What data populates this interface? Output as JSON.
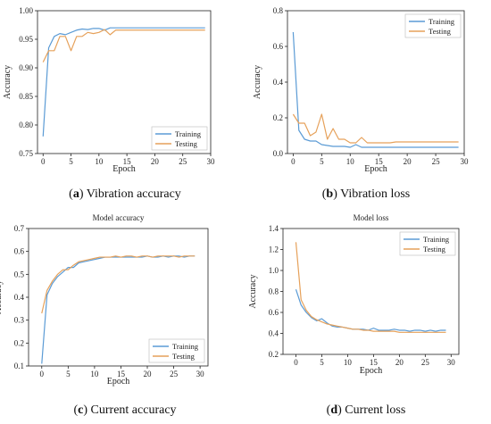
{
  "colors": {
    "training": "#5b9bd5",
    "testing": "#e6a15a",
    "axis": "#222222"
  },
  "captions": [
    {
      "tag": "a",
      "text": "Vibration accuracy"
    },
    {
      "tag": "b",
      "text": "Vibration loss"
    },
    {
      "tag": "c",
      "text": "Current accuracy"
    },
    {
      "tag": "d",
      "text": "Current loss"
    }
  ],
  "chart_data": [
    {
      "type": "line",
      "title": "",
      "xlabel": "Epoch",
      "ylabel": "Accuracy",
      "xlim": [
        -1,
        30
      ],
      "ylim": [
        0.75,
        1.0
      ],
      "xticks": [
        0,
        5,
        10,
        15,
        20,
        25,
        30
      ],
      "yticks": [
        0.75,
        0.8,
        0.85,
        0.9,
        0.95,
        1.0
      ],
      "ytick_labels": [
        "0.75",
        "0.80",
        "0.85",
        "0.90",
        "0.95",
        "1.00"
      ],
      "legend": "bottom-right",
      "series": [
        {
          "name": "Training",
          "x": [
            0,
            1,
            2,
            3,
            4,
            5,
            6,
            7,
            8,
            9,
            10,
            11,
            12,
            13,
            14,
            15,
            16,
            17,
            18,
            19,
            20,
            21,
            22,
            23,
            24,
            25,
            26,
            27,
            28,
            29
          ],
          "y": [
            0.78,
            0.935,
            0.955,
            0.96,
            0.958,
            0.962,
            0.966,
            0.968,
            0.967,
            0.969,
            0.969,
            0.966,
            0.97,
            0.97,
            0.97,
            0.97,
            0.97,
            0.97,
            0.97,
            0.97,
            0.97,
            0.97,
            0.97,
            0.97,
            0.97,
            0.97,
            0.97,
            0.97,
            0.97,
            0.97
          ]
        },
        {
          "name": "Testing",
          "x": [
            0,
            1,
            2,
            3,
            4,
            5,
            6,
            7,
            8,
            9,
            10,
            11,
            12,
            13,
            14,
            15,
            16,
            17,
            18,
            19,
            20,
            21,
            22,
            23,
            24,
            25,
            26,
            27,
            28,
            29
          ],
          "y": [
            0.91,
            0.93,
            0.93,
            0.955,
            0.955,
            0.93,
            0.955,
            0.955,
            0.962,
            0.96,
            0.962,
            0.967,
            0.958,
            0.966,
            0.966,
            0.966,
            0.966,
            0.966,
            0.966,
            0.966,
            0.966,
            0.966,
            0.966,
            0.966,
            0.966,
            0.966,
            0.966,
            0.966,
            0.966,
            0.966
          ]
        }
      ]
    },
    {
      "type": "line",
      "title": "",
      "xlabel": "Epoch",
      "ylabel": "Accuracy",
      "xlim": [
        -1,
        30
      ],
      "ylim": [
        0.0,
        0.8
      ],
      "xticks": [
        0,
        5,
        10,
        15,
        20,
        25,
        30
      ],
      "yticks": [
        0.0,
        0.2,
        0.4,
        0.6,
        0.8
      ],
      "ytick_labels": [
        "0.0",
        "0.2",
        "0.4",
        "0.6",
        "0.8"
      ],
      "legend": "top-right",
      "series": [
        {
          "name": "Training",
          "x": [
            0,
            1,
            2,
            3,
            4,
            5,
            6,
            7,
            8,
            9,
            10,
            11,
            12,
            13,
            14,
            15,
            16,
            17,
            18,
            19,
            20,
            21,
            22,
            23,
            24,
            25,
            26,
            27,
            28,
            29
          ],
          "y": [
            0.68,
            0.13,
            0.08,
            0.07,
            0.07,
            0.05,
            0.045,
            0.04,
            0.04,
            0.04,
            0.035,
            0.05,
            0.035,
            0.035,
            0.035,
            0.035,
            0.035,
            0.035,
            0.035,
            0.035,
            0.035,
            0.035,
            0.035,
            0.035,
            0.035,
            0.035,
            0.035,
            0.035,
            0.035,
            0.035
          ]
        },
        {
          "name": "Testing",
          "x": [
            0,
            1,
            2,
            3,
            4,
            5,
            6,
            7,
            8,
            9,
            10,
            11,
            12,
            13,
            14,
            15,
            16,
            17,
            18,
            19,
            20,
            21,
            22,
            23,
            24,
            25,
            26,
            27,
            28,
            29
          ],
          "y": [
            0.22,
            0.17,
            0.17,
            0.1,
            0.12,
            0.22,
            0.08,
            0.14,
            0.08,
            0.08,
            0.06,
            0.06,
            0.09,
            0.06,
            0.06,
            0.06,
            0.06,
            0.06,
            0.065,
            0.065,
            0.065,
            0.065,
            0.065,
            0.065,
            0.065,
            0.065,
            0.065,
            0.065,
            0.065,
            0.065
          ]
        }
      ]
    },
    {
      "type": "line",
      "title": "Model accuracy",
      "xlabel": "Epoch",
      "ylabel": "Accuracy",
      "xlim": [
        -2.5,
        31.5
      ],
      "ylim": [
        0.1,
        0.7
      ],
      "xticks": [
        0,
        5,
        10,
        15,
        20,
        25,
        30
      ],
      "yticks": [
        0.1,
        0.2,
        0.3,
        0.4,
        0.5,
        0.6,
        0.7
      ],
      "ytick_labels": [
        "0.1",
        "0.2",
        "0.3",
        "0.4",
        "0.5",
        "0.6",
        "0.7"
      ],
      "legend": "bottom-right",
      "series": [
        {
          "name": "Training",
          "x": [
            0,
            1,
            2,
            3,
            4,
            5,
            6,
            7,
            8,
            9,
            10,
            11,
            12,
            13,
            14,
            15,
            16,
            17,
            18,
            19,
            20,
            21,
            22,
            23,
            24,
            25,
            26,
            27,
            28,
            29
          ],
          "y": [
            0.11,
            0.41,
            0.46,
            0.49,
            0.51,
            0.53,
            0.53,
            0.55,
            0.555,
            0.56,
            0.565,
            0.57,
            0.575,
            0.575,
            0.575,
            0.575,
            0.575,
            0.575,
            0.575,
            0.575,
            0.58,
            0.575,
            0.575,
            0.58,
            0.575,
            0.58,
            0.58,
            0.575,
            0.58,
            0.58
          ]
        },
        {
          "name": "Testing",
          "x": [
            0,
            1,
            2,
            3,
            4,
            5,
            6,
            7,
            8,
            9,
            10,
            11,
            12,
            13,
            14,
            15,
            16,
            17,
            18,
            19,
            20,
            21,
            22,
            23,
            24,
            25,
            26,
            27,
            28,
            29
          ],
          "y": [
            0.33,
            0.43,
            0.47,
            0.5,
            0.52,
            0.52,
            0.54,
            0.555,
            0.56,
            0.565,
            0.57,
            0.575,
            0.575,
            0.575,
            0.58,
            0.575,
            0.58,
            0.58,
            0.575,
            0.58,
            0.58,
            0.575,
            0.58,
            0.58,
            0.58,
            0.58,
            0.575,
            0.58,
            0.58,
            0.58
          ]
        }
      ]
    },
    {
      "type": "line",
      "title": "Model loss",
      "xlabel": "Epoch",
      "ylabel": "Accuracy",
      "xlim": [
        -2.5,
        31.5
      ],
      "ylim": [
        0.2,
        1.4
      ],
      "xticks": [
        0,
        5,
        10,
        15,
        20,
        25,
        30
      ],
      "yticks": [
        0.2,
        0.4,
        0.6,
        0.8,
        1.0,
        1.2,
        1.4
      ],
      "ytick_labels": [
        "0.2",
        "0.4",
        "0.6",
        "0.8",
        "1.0",
        "1.2",
        "1.4"
      ],
      "legend": "top-right",
      "series": [
        {
          "name": "Training",
          "x": [
            0,
            1,
            2,
            3,
            4,
            5,
            6,
            7,
            8,
            9,
            10,
            11,
            12,
            13,
            14,
            15,
            16,
            17,
            18,
            19,
            20,
            21,
            22,
            23,
            24,
            25,
            26,
            27,
            28,
            29
          ],
          "y": [
            0.82,
            0.67,
            0.6,
            0.55,
            0.52,
            0.54,
            0.5,
            0.47,
            0.46,
            0.46,
            0.45,
            0.44,
            0.44,
            0.44,
            0.43,
            0.45,
            0.43,
            0.43,
            0.43,
            0.44,
            0.43,
            0.43,
            0.42,
            0.43,
            0.43,
            0.42,
            0.43,
            0.42,
            0.43,
            0.43
          ]
        },
        {
          "name": "Testing",
          "x": [
            0,
            1,
            2,
            3,
            4,
            5,
            6,
            7,
            8,
            9,
            10,
            11,
            12,
            13,
            14,
            15,
            16,
            17,
            18,
            19,
            20,
            21,
            22,
            23,
            24,
            25,
            26,
            27,
            28,
            29
          ],
          "y": [
            1.27,
            0.72,
            0.62,
            0.56,
            0.53,
            0.51,
            0.49,
            0.48,
            0.47,
            0.46,
            0.45,
            0.44,
            0.44,
            0.43,
            0.43,
            0.42,
            0.42,
            0.42,
            0.42,
            0.42,
            0.41,
            0.41,
            0.41,
            0.41,
            0.41,
            0.41,
            0.41,
            0.41,
            0.41,
            0.41
          ]
        }
      ]
    }
  ]
}
